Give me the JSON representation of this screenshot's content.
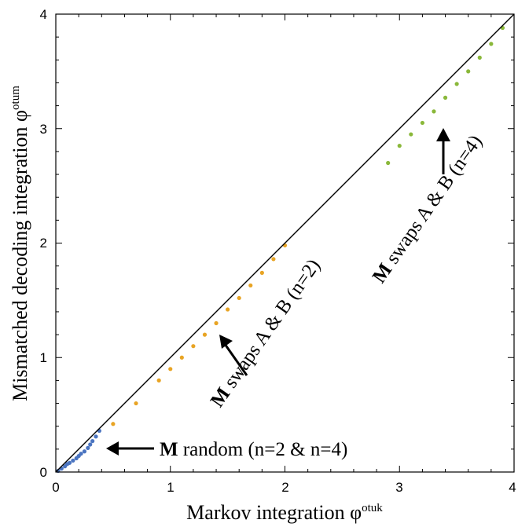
{
  "chart_data": {
    "type": "scatter",
    "title": "",
    "xlabel": "Markov integration φ",
    "xlabel_sup": "otuk",
    "ylabel": "Mismatched decoding integration φ",
    "ylabel_sup": "otum",
    "xlim": [
      0,
      4
    ],
    "ylim": [
      0,
      4
    ],
    "xticks": [
      "0",
      "1",
      "2",
      "3",
      "4"
    ],
    "yticks": [
      "0",
      "1",
      "2",
      "3",
      "4"
    ],
    "grid": false,
    "legend": "none",
    "reference_line": {
      "x": [
        0,
        4
      ],
      "y": [
        0,
        4
      ],
      "color": "#000000"
    },
    "series": [
      {
        "color": "#4a74c0",
        "x": [
          0.02,
          0.05,
          0.08,
          0.1,
          0.12,
          0.15,
          0.18,
          0.2,
          0.22,
          0.25,
          0.28,
          0.3,
          0.32,
          0.35,
          0.38
        ],
        "y": [
          0.01,
          0.03,
          0.05,
          0.07,
          0.08,
          0.1,
          0.12,
          0.14,
          0.16,
          0.18,
          0.21,
          0.24,
          0.27,
          0.31,
          0.36
        ]
      },
      {
        "color": "#e8a424",
        "x": [
          0.5,
          0.7,
          0.9,
          1.0,
          1.1,
          1.2,
          1.3,
          1.4,
          1.5,
          1.6,
          1.7,
          1.8,
          1.9,
          2.0
        ],
        "y": [
          0.42,
          0.6,
          0.8,
          0.9,
          1.0,
          1.1,
          1.2,
          1.3,
          1.42,
          1.52,
          1.63,
          1.74,
          1.86,
          1.98
        ]
      },
      {
        "color": "#8ab83a",
        "x": [
          2.9,
          3.0,
          3.1,
          3.2,
          3.3,
          3.4,
          3.5,
          3.6,
          3.7,
          3.8,
          3.9
        ],
        "y": [
          2.7,
          2.85,
          2.95,
          3.05,
          3.15,
          3.27,
          3.39,
          3.5,
          3.62,
          3.74,
          3.88
        ]
      }
    ],
    "annotations": [
      {
        "bold": "M",
        "text": " random (n=2 & n=4)",
        "x": 0.38,
        "y": 0.2
      },
      {
        "bold": "M",
        "text": " swaps A & B (n=2)",
        "x": 1.43,
        "y": 1.17
      },
      {
        "bold": "M",
        "text": " swaps A & B (n=4)",
        "x": 3.35,
        "y": 3.03
      }
    ]
  }
}
